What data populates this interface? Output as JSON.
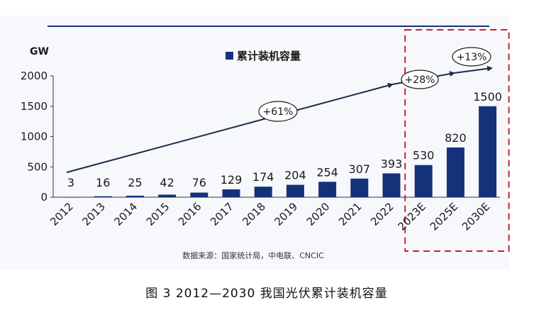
{
  "chart_data": {
    "type": "bar",
    "categories": [
      "2012",
      "2013",
      "2014",
      "2015",
      "2016",
      "2017",
      "2018",
      "2019",
      "2020",
      "2021",
      "2022",
      "2023E",
      "2025E",
      "2030E"
    ],
    "series": [
      {
        "name": "累计装机容量",
        "values": [
          3,
          16,
          25,
          42,
          76,
          129,
          174,
          204,
          254,
          307,
          393,
          530,
          820,
          1500
        ]
      }
    ],
    "data_labels": [
      "3",
      "16",
      "25",
      "42",
      "76",
      "129",
      "174",
      "204",
      "254",
      "307",
      "393",
      "530",
      "820",
      "1500"
    ],
    "ylabel": "GW",
    "ylim": [
      0,
      2000
    ],
    "yticks": [
      0,
      500,
      1000,
      1500,
      2000
    ],
    "ytick_labels": [
      "0",
      "500",
      "1000",
      "1500",
      "2000"
    ],
    "grid": false,
    "legend": {
      "position": "top-center",
      "entries": [
        "累计装机容量"
      ]
    },
    "growth_annotations": [
      {
        "label": "+61%",
        "from_category": "2012",
        "to_category": "2022"
      },
      {
        "label": "+28%",
        "from_category": "2022",
        "to_category": "2025E"
      },
      {
        "label": "+13%",
        "from_category": "2025E",
        "to_category": "2030E"
      }
    ],
    "highlight": {
      "categories": [
        "2023E",
        "2025E",
        "2030E"
      ],
      "style": "dashed-box",
      "color": "#c0272d"
    },
    "bar_color": "#14327a",
    "source": "数据来源：国家统计局，中电联、CNCIC",
    "caption": "图 3 2012—2030 我国光伏累计装机容量"
  }
}
